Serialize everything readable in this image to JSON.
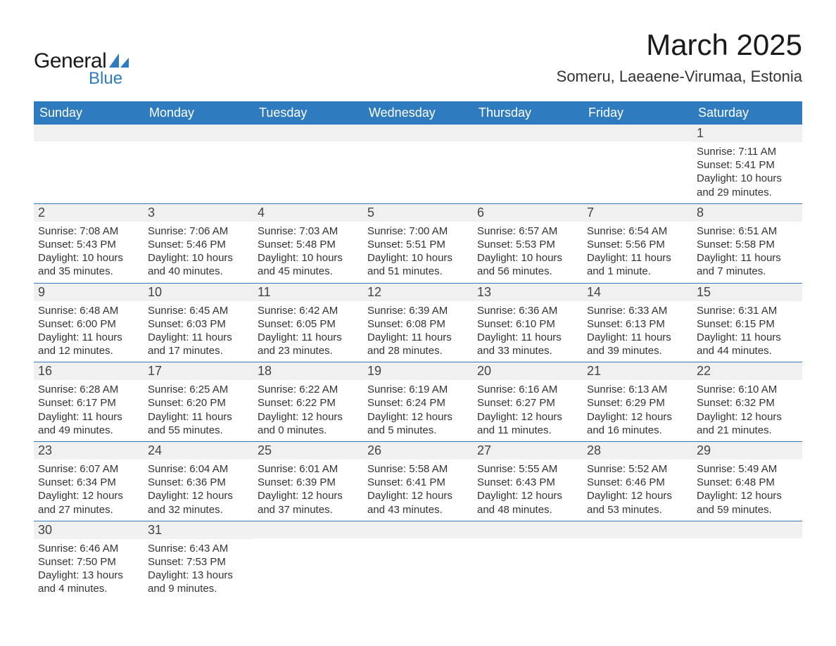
{
  "brand": {
    "line1": "General",
    "line2": "Blue",
    "accent_color": "#2f7bbf"
  },
  "title": "March 2025",
  "location": "Someru, Laeaene-Virumaa, Estonia",
  "colors": {
    "header_bg": "#2f7bbf",
    "header_text": "#ffffff",
    "date_bar_bg": "#f0f0f0",
    "row_border": "#2f7bbf",
    "body_text": "#333333"
  },
  "typography": {
    "title_fontsize": 42,
    "location_fontsize": 22,
    "dow_fontsize": 18,
    "date_fontsize": 18,
    "body_fontsize": 15
  },
  "days_of_week": [
    "Sunday",
    "Monday",
    "Tuesday",
    "Wednesday",
    "Thursday",
    "Friday",
    "Saturday"
  ],
  "weeks": [
    [
      {
        "date": "",
        "sunrise": "",
        "sunset": "",
        "daylight": ""
      },
      {
        "date": "",
        "sunrise": "",
        "sunset": "",
        "daylight": ""
      },
      {
        "date": "",
        "sunrise": "",
        "sunset": "",
        "daylight": ""
      },
      {
        "date": "",
        "sunrise": "",
        "sunset": "",
        "daylight": ""
      },
      {
        "date": "",
        "sunrise": "",
        "sunset": "",
        "daylight": ""
      },
      {
        "date": "",
        "sunrise": "",
        "sunset": "",
        "daylight": ""
      },
      {
        "date": "1",
        "sunrise": "Sunrise: 7:11 AM",
        "sunset": "Sunset: 5:41 PM",
        "daylight": "Daylight: 10 hours and 29 minutes."
      }
    ],
    [
      {
        "date": "2",
        "sunrise": "Sunrise: 7:08 AM",
        "sunset": "Sunset: 5:43 PM",
        "daylight": "Daylight: 10 hours and 35 minutes."
      },
      {
        "date": "3",
        "sunrise": "Sunrise: 7:06 AM",
        "sunset": "Sunset: 5:46 PM",
        "daylight": "Daylight: 10 hours and 40 minutes."
      },
      {
        "date": "4",
        "sunrise": "Sunrise: 7:03 AM",
        "sunset": "Sunset: 5:48 PM",
        "daylight": "Daylight: 10 hours and 45 minutes."
      },
      {
        "date": "5",
        "sunrise": "Sunrise: 7:00 AM",
        "sunset": "Sunset: 5:51 PM",
        "daylight": "Daylight: 10 hours and 51 minutes."
      },
      {
        "date": "6",
        "sunrise": "Sunrise: 6:57 AM",
        "sunset": "Sunset: 5:53 PM",
        "daylight": "Daylight: 10 hours and 56 minutes."
      },
      {
        "date": "7",
        "sunrise": "Sunrise: 6:54 AM",
        "sunset": "Sunset: 5:56 PM",
        "daylight": "Daylight: 11 hours and 1 minute."
      },
      {
        "date": "8",
        "sunrise": "Sunrise: 6:51 AM",
        "sunset": "Sunset: 5:58 PM",
        "daylight": "Daylight: 11 hours and 7 minutes."
      }
    ],
    [
      {
        "date": "9",
        "sunrise": "Sunrise: 6:48 AM",
        "sunset": "Sunset: 6:00 PM",
        "daylight": "Daylight: 11 hours and 12 minutes."
      },
      {
        "date": "10",
        "sunrise": "Sunrise: 6:45 AM",
        "sunset": "Sunset: 6:03 PM",
        "daylight": "Daylight: 11 hours and 17 minutes."
      },
      {
        "date": "11",
        "sunrise": "Sunrise: 6:42 AM",
        "sunset": "Sunset: 6:05 PM",
        "daylight": "Daylight: 11 hours and 23 minutes."
      },
      {
        "date": "12",
        "sunrise": "Sunrise: 6:39 AM",
        "sunset": "Sunset: 6:08 PM",
        "daylight": "Daylight: 11 hours and 28 minutes."
      },
      {
        "date": "13",
        "sunrise": "Sunrise: 6:36 AM",
        "sunset": "Sunset: 6:10 PM",
        "daylight": "Daylight: 11 hours and 33 minutes."
      },
      {
        "date": "14",
        "sunrise": "Sunrise: 6:33 AM",
        "sunset": "Sunset: 6:13 PM",
        "daylight": "Daylight: 11 hours and 39 minutes."
      },
      {
        "date": "15",
        "sunrise": "Sunrise: 6:31 AM",
        "sunset": "Sunset: 6:15 PM",
        "daylight": "Daylight: 11 hours and 44 minutes."
      }
    ],
    [
      {
        "date": "16",
        "sunrise": "Sunrise: 6:28 AM",
        "sunset": "Sunset: 6:17 PM",
        "daylight": "Daylight: 11 hours and 49 minutes."
      },
      {
        "date": "17",
        "sunrise": "Sunrise: 6:25 AM",
        "sunset": "Sunset: 6:20 PM",
        "daylight": "Daylight: 11 hours and 55 minutes."
      },
      {
        "date": "18",
        "sunrise": "Sunrise: 6:22 AM",
        "sunset": "Sunset: 6:22 PM",
        "daylight": "Daylight: 12 hours and 0 minutes."
      },
      {
        "date": "19",
        "sunrise": "Sunrise: 6:19 AM",
        "sunset": "Sunset: 6:24 PM",
        "daylight": "Daylight: 12 hours and 5 minutes."
      },
      {
        "date": "20",
        "sunrise": "Sunrise: 6:16 AM",
        "sunset": "Sunset: 6:27 PM",
        "daylight": "Daylight: 12 hours and 11 minutes."
      },
      {
        "date": "21",
        "sunrise": "Sunrise: 6:13 AM",
        "sunset": "Sunset: 6:29 PM",
        "daylight": "Daylight: 12 hours and 16 minutes."
      },
      {
        "date": "22",
        "sunrise": "Sunrise: 6:10 AM",
        "sunset": "Sunset: 6:32 PM",
        "daylight": "Daylight: 12 hours and 21 minutes."
      }
    ],
    [
      {
        "date": "23",
        "sunrise": "Sunrise: 6:07 AM",
        "sunset": "Sunset: 6:34 PM",
        "daylight": "Daylight: 12 hours and 27 minutes."
      },
      {
        "date": "24",
        "sunrise": "Sunrise: 6:04 AM",
        "sunset": "Sunset: 6:36 PM",
        "daylight": "Daylight: 12 hours and 32 minutes."
      },
      {
        "date": "25",
        "sunrise": "Sunrise: 6:01 AM",
        "sunset": "Sunset: 6:39 PM",
        "daylight": "Daylight: 12 hours and 37 minutes."
      },
      {
        "date": "26",
        "sunrise": "Sunrise: 5:58 AM",
        "sunset": "Sunset: 6:41 PM",
        "daylight": "Daylight: 12 hours and 43 minutes."
      },
      {
        "date": "27",
        "sunrise": "Sunrise: 5:55 AM",
        "sunset": "Sunset: 6:43 PM",
        "daylight": "Daylight: 12 hours and 48 minutes."
      },
      {
        "date": "28",
        "sunrise": "Sunrise: 5:52 AM",
        "sunset": "Sunset: 6:46 PM",
        "daylight": "Daylight: 12 hours and 53 minutes."
      },
      {
        "date": "29",
        "sunrise": "Sunrise: 5:49 AM",
        "sunset": "Sunset: 6:48 PM",
        "daylight": "Daylight: 12 hours and 59 minutes."
      }
    ],
    [
      {
        "date": "30",
        "sunrise": "Sunrise: 6:46 AM",
        "sunset": "Sunset: 7:50 PM",
        "daylight": "Daylight: 13 hours and 4 minutes."
      },
      {
        "date": "31",
        "sunrise": "Sunrise: 6:43 AM",
        "sunset": "Sunset: 7:53 PM",
        "daylight": "Daylight: 13 hours and 9 minutes."
      },
      {
        "date": "",
        "sunrise": "",
        "sunset": "",
        "daylight": ""
      },
      {
        "date": "",
        "sunrise": "",
        "sunset": "",
        "daylight": ""
      },
      {
        "date": "",
        "sunrise": "",
        "sunset": "",
        "daylight": ""
      },
      {
        "date": "",
        "sunrise": "",
        "sunset": "",
        "daylight": ""
      },
      {
        "date": "",
        "sunrise": "",
        "sunset": "",
        "daylight": ""
      }
    ]
  ]
}
